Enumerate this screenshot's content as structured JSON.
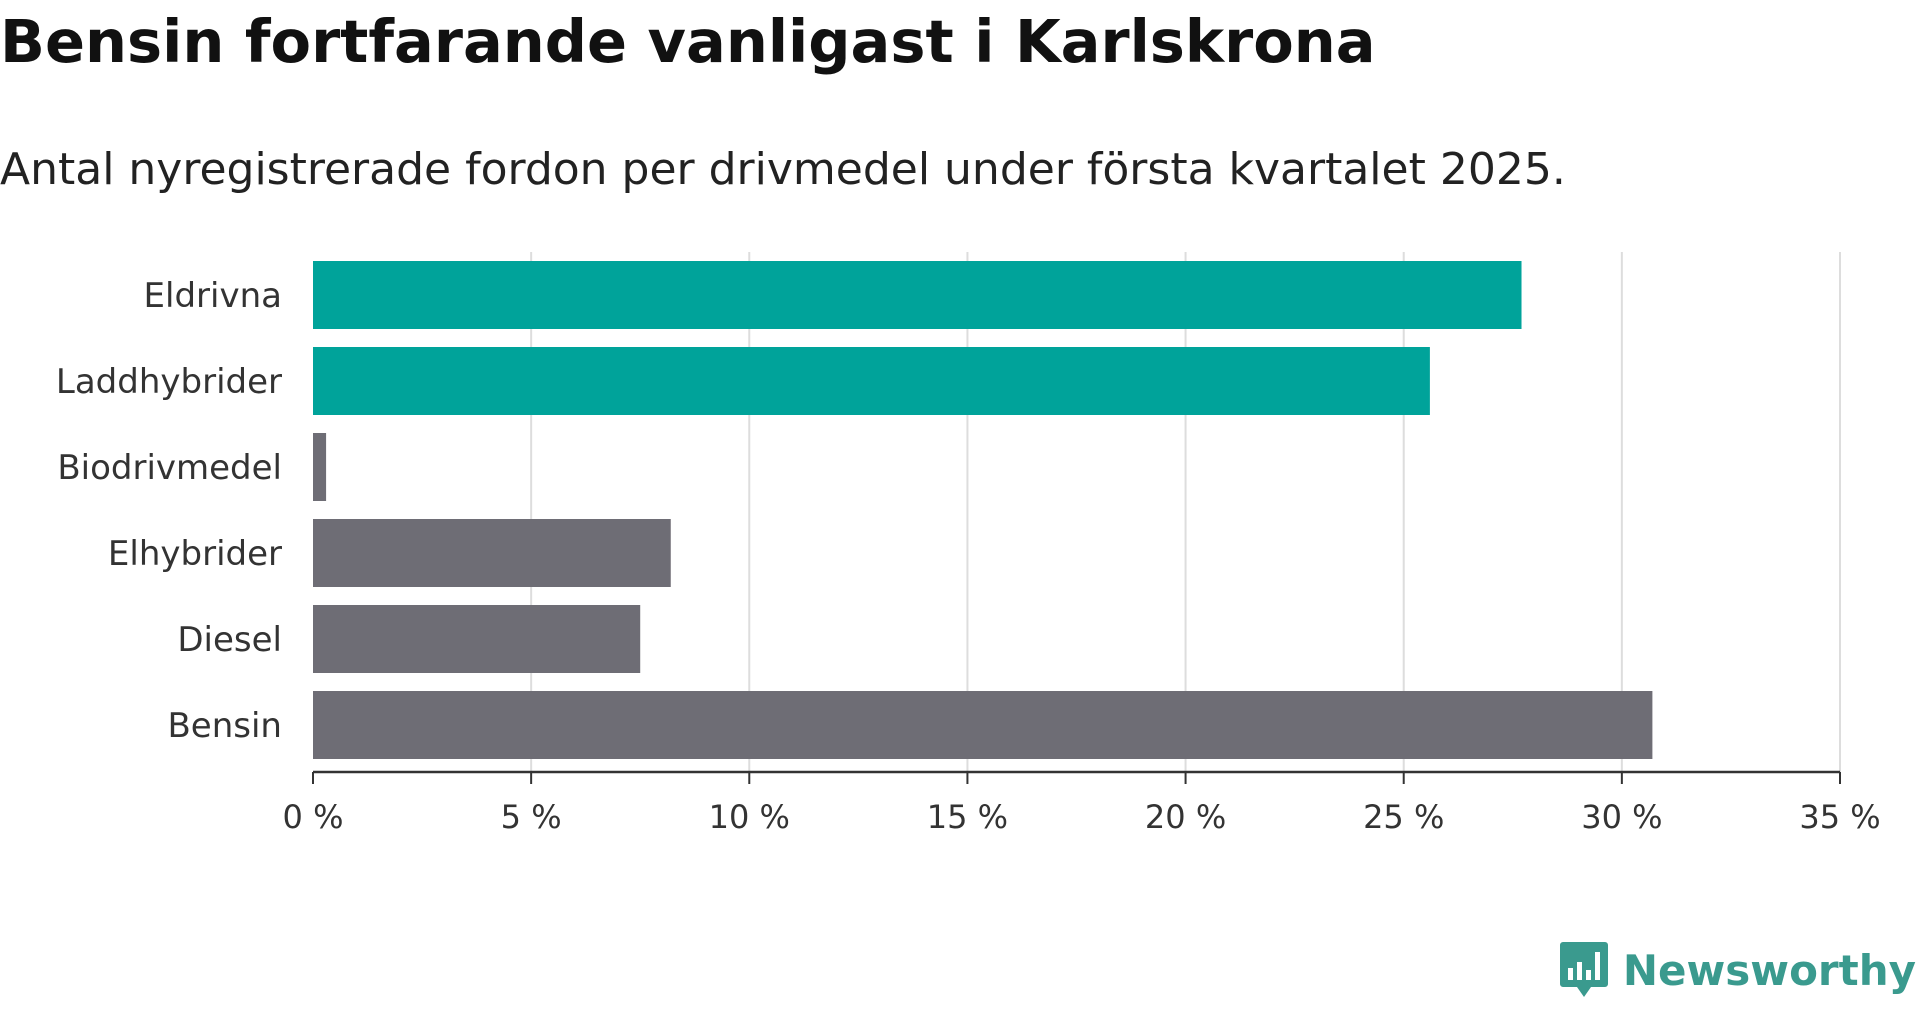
{
  "chart_data": {
    "type": "bar",
    "orientation": "horizontal",
    "title": "Bensin fortfarande vanligast i Karlskrona",
    "subtitle": "Antal nyregistrerade fordon per drivmedel under första kvartalet 2025.",
    "categories": [
      "Eldrivna",
      "Laddhybrider",
      "Biodrivmedel",
      "Elhybrider",
      "Diesel",
      "Bensin"
    ],
    "values": [
      27.7,
      25.6,
      0.3,
      8.2,
      7.5,
      30.7
    ],
    "bar_colors": [
      "#00a39a",
      "#00a39a",
      "#6e6d75",
      "#6e6d75",
      "#6e6d75",
      "#6e6d75"
    ],
    "xlim": [
      0,
      35
    ],
    "xticks": [
      0,
      5,
      10,
      15,
      20,
      25,
      30,
      35
    ],
    "xtick_labels": [
      "0 %",
      "5 %",
      "10 %",
      "15 %",
      "20 %",
      "25 %",
      "30 %",
      "35 %"
    ],
    "grid": "vertical",
    "xlabel": "",
    "ylabel": ""
  },
  "brand": {
    "name": "Newsworthy",
    "icon": "newsworthy-logo-icon",
    "color": "#3a9a8e"
  },
  "colors": {
    "grid": "#dddddd",
    "axis": "#333333"
  }
}
